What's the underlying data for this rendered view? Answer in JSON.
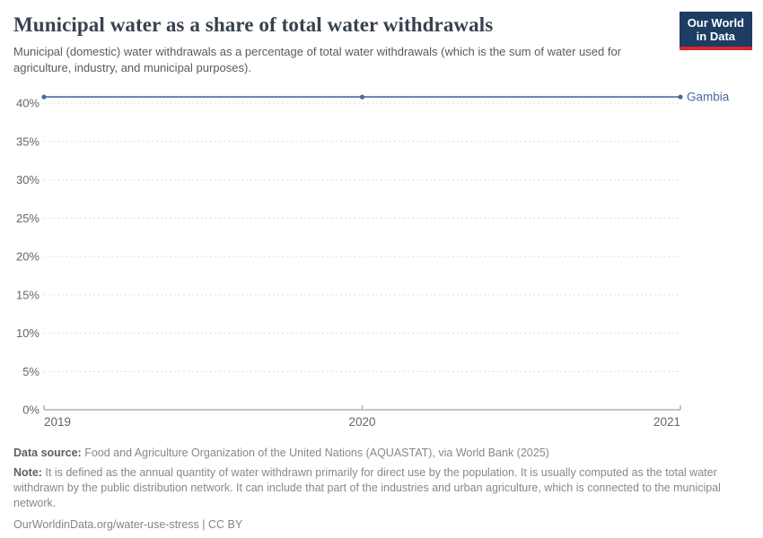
{
  "header": {
    "title": "Municipal water as a share of total water withdrawals",
    "subtitle": "Municipal (domestic) water withdrawals as a percentage of total water withdrawals (which is the sum of water used for agriculture, industry, and municipal purposes).",
    "logo_line1": "Our World",
    "logo_line2": "in Data"
  },
  "chart_data": {
    "type": "line",
    "title": "Municipal water as a share of total water withdrawals",
    "x": [
      "2019",
      "2020",
      "2021"
    ],
    "series": [
      {
        "name": "Gambia",
        "values": [
          40.8,
          40.8,
          40.8
        ],
        "color": "#4C6A9C",
        "line_color": "#6580AE"
      }
    ],
    "xlabel": "",
    "ylabel": "",
    "ylim": [
      0,
      40
    ],
    "ytick_step": 5,
    "ytick_suffix": "%",
    "grid": "horizontal-dashed",
    "legend_position": "end-of-line-label"
  },
  "colors": {
    "accent_navy": "#1d3d63",
    "accent_red": "#d7282f",
    "grid": "#dcdcdc",
    "axis": "#a5a5a5",
    "tick_label": "#666666",
    "series_line": "#6580AE",
    "series_marker": "#4A699C",
    "series_label": "#4C6A9C"
  },
  "footer": {
    "datasource_label": "Data source:",
    "datasource_text": " Food and Agriculture Organization of the United Nations (AQUASTAT), via World Bank (2025)",
    "note_label": "Note:",
    "note_text": " It is defined as the annual quantity of water withdrawn primarily for direct use by the population. It is usually computed as the total water withdrawn by the public distribution network. It can include that part of the industries and urban agriculture, which is connected to the municipal network.",
    "url_text": "OurWorldinData.org/water-use-stress",
    "separator": " | ",
    "license_text": "CC BY"
  }
}
